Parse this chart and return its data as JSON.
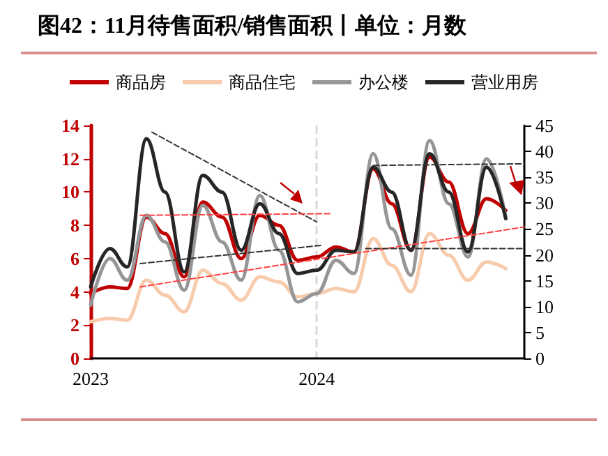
{
  "chart_data": {
    "type": "line",
    "title": "图42：11月待售面积/销售面积丨单位：月数",
    "x": [
      "2023-01",
      "2023-02",
      "2023-03",
      "2023-04",
      "2023-05",
      "2023-06",
      "2023-07",
      "2023-08",
      "2023-09",
      "2023-10",
      "2023-11",
      "2023-12",
      "2024-01",
      "2024-02",
      "2024-03",
      "2024-04",
      "2024-05",
      "2024-06",
      "2024-07",
      "2024-08",
      "2024-09",
      "2024-10",
      "2024-11"
    ],
    "series": [
      {
        "name": "商品房",
        "color": "#c00000",
        "values": [
          3.9,
          4.3,
          4.2,
          8.5,
          7.5,
          4.9,
          9.4,
          8.5,
          6.0,
          8.6,
          8.0,
          5.9,
          6.1,
          6.7,
          6.4,
          11.4,
          9.3,
          6.5,
          12.1,
          10.6,
          7.5,
          9.6,
          8.9
        ]
      },
      {
        "name": "商品住宅",
        "color": "#f8cbad",
        "values": [
          2.2,
          2.4,
          2.3,
          4.7,
          3.8,
          2.8,
          5.3,
          4.5,
          3.5,
          4.9,
          4.6,
          3.7,
          3.9,
          4.2,
          4.0,
          7.2,
          5.6,
          4.0,
          7.5,
          6.2,
          4.7,
          5.8,
          5.4
        ]
      },
      {
        "name": "办公楼",
        "color": "#969696",
        "values": [
          3.2,
          6.0,
          4.7,
          8.6,
          7.0,
          4.1,
          9.2,
          7.0,
          4.7,
          9.8,
          6.5,
          3.4,
          3.9,
          5.9,
          5.1,
          12.3,
          7.8,
          5.0,
          13.1,
          9.3,
          6.1,
          12.0,
          8.5
        ]
      },
      {
        "name": "营业用房",
        "color": "#262626",
        "values": [
          4.3,
          6.6,
          5.5,
          13.2,
          10.0,
          5.2,
          11.0,
          10.0,
          6.5,
          9.3,
          7.5,
          5.1,
          5.3,
          6.5,
          6.4,
          11.5,
          10.0,
          6.5,
          12.3,
          10.0,
          6.4,
          11.5,
          8.4
        ]
      },
      {
        "color": "#333333",
        "line_style": "dashed",
        "x": [
          "2023-04-10",
          "2024-01-01"
        ],
        "values": [
          13.6,
          8.2
        ]
      },
      {
        "color": "#333333",
        "line_style": "dashed",
        "x": [
          "2023-03-22",
          "2024-01-10"
        ],
        "values": [
          5.7,
          6.8
        ]
      },
      {
        "color": "#ff4040",
        "line_style": "dashed",
        "x": [
          "2023-03-22",
          "2024-01-22"
        ],
        "values": [
          8.6,
          8.7
        ]
      },
      {
        "color": "#ff4040",
        "line_style": "dashed",
        "x": [
          "2023-03-22",
          "2024-12-01"
        ],
        "values": [
          4.3,
          7.9
        ]
      },
      {
        "color": "#333333",
        "line_style": "dashed",
        "x": [
          "2024-04-01",
          "2024-12-01"
        ],
        "values": [
          11.6,
          11.7
        ]
      },
      {
        "color": "#333333",
        "line_style": "dashed",
        "x": [
          "2024-03-20",
          "2024-12-01"
        ],
        "values": [
          6.6,
          6.6
        ]
      }
    ],
    "xlim": [
      "2023",
      "2024-12"
    ],
    "xticks": [
      "2023",
      "2024"
    ],
    "ylim": [
      0,
      14
    ],
    "yticks": [
      0,
      2,
      4,
      6,
      8,
      10,
      12,
      14
    ],
    "y2lim": [
      0,
      45
    ],
    "y2ticks": [
      0,
      5,
      10,
      15,
      20,
      25,
      30,
      35,
      40,
      45
    ],
    "grid": "x",
    "legend": "top",
    "marker": "none",
    "line_style": "solid"
  }
}
